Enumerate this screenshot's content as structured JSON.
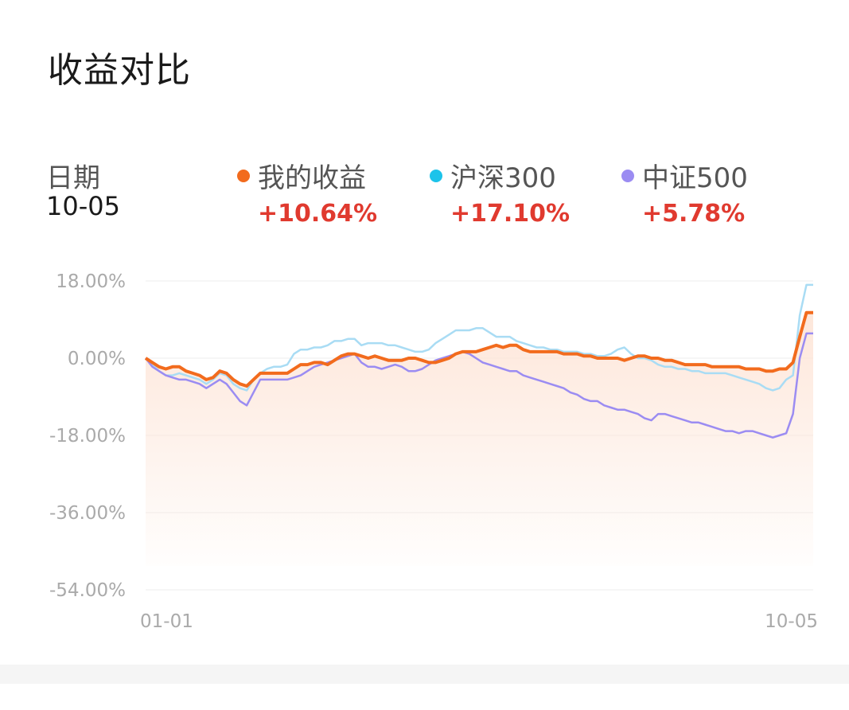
{
  "title": "收益对比",
  "date_label": "日期",
  "date_value": "10-05",
  "legend": [
    {
      "name": "我的收益",
      "value": "+10.64%",
      "color": "#f26b1d"
    },
    {
      "name": "沪深300",
      "value": "+17.10%",
      "color": "#1cc3ea"
    },
    {
      "name": "中证500",
      "value": "+5.78%",
      "color": "#9b8cf2"
    }
  ],
  "chart_data": {
    "type": "line",
    "x_tick_labels": [
      "01-01",
      "10-05"
    ],
    "y_tick_labels": [
      "18.00%",
      "0.00%",
      "-18.00%",
      "-36.00%",
      "-54.00%"
    ],
    "ylim": [
      -54,
      18
    ],
    "grid": true,
    "series": [
      {
        "name": "我的收益",
        "color": "#f26b1d",
        "values": [
          0,
          -1,
          -2,
          -2.5,
          -2,
          -2,
          -3,
          -3.5,
          -4,
          -5,
          -4.5,
          -3,
          -3.5,
          -5,
          -6,
          -6.5,
          -5,
          -3.5,
          -3.5,
          -3.5,
          -3.5,
          -3.5,
          -2.5,
          -1.5,
          -1.5,
          -1,
          -1,
          -1.5,
          -0.5,
          0.5,
          1,
          1,
          0.5,
          0,
          0.5,
          0,
          -0.5,
          -0.5,
          -0.5,
          0,
          0,
          -0.5,
          -1,
          -1,
          -0.5,
          0,
          1,
          1.5,
          1.5,
          1.5,
          2,
          2.5,
          3,
          2.5,
          3,
          3,
          2,
          1.5,
          1.5,
          1.5,
          1.5,
          1.5,
          1,
          1,
          1,
          0.5,
          0.5,
          0,
          0,
          0,
          0,
          -0.5,
          0,
          0.5,
          0.5,
          0,
          0,
          -0.5,
          -0.5,
          -1,
          -1.5,
          -1.5,
          -1.5,
          -1.5,
          -2,
          -2,
          -2,
          -2,
          -2,
          -2.5,
          -2.5,
          -2.5,
          -3,
          -3,
          -2.5,
          -2.5,
          -1,
          5,
          10.64,
          10.64
        ]
      },
      {
        "name": "沪深300",
        "color": "#a9dcf4",
        "values": [
          0,
          -1.5,
          -3,
          -4,
          -4,
          -3.5,
          -4,
          -4.5,
          -5,
          -6,
          -5,
          -3.5,
          -4,
          -6,
          -7,
          -7.5,
          -5,
          -3.5,
          -2.5,
          -2,
          -2,
          -1.5,
          1,
          2,
          2,
          2.5,
          2.5,
          3,
          4,
          4,
          4.5,
          4.5,
          3,
          3.5,
          3.5,
          3.5,
          3,
          3,
          2.5,
          2,
          1.5,
          1.5,
          2,
          3.5,
          4.5,
          5.5,
          6.5,
          6.5,
          6.5,
          7,
          7,
          6,
          5,
          5,
          5,
          4,
          3.5,
          3,
          2.5,
          2.5,
          2,
          2,
          1.5,
          1.5,
          1.5,
          1,
          1,
          0.5,
          0.5,
          1,
          2,
          2.5,
          1,
          0,
          0,
          -0.5,
          -1.5,
          -2,
          -2,
          -2.5,
          -2.5,
          -3,
          -3,
          -3.5,
          -3.5,
          -3.5,
          -3.5,
          -4,
          -4.5,
          -5,
          -5.5,
          -6,
          -7,
          -7.5,
          -7,
          -5,
          -4,
          10,
          17.1,
          17.1
        ]
      },
      {
        "name": "中证500",
        "color": "#9b8cf2",
        "values": [
          0,
          -2,
          -3,
          -4,
          -4.5,
          -5,
          -5,
          -5.5,
          -6,
          -7,
          -6,
          -5,
          -6,
          -8,
          -10,
          -11,
          -8,
          -5,
          -5,
          -5,
          -5,
          -5,
          -4.5,
          -4,
          -3,
          -2,
          -1.5,
          -1,
          -0.5,
          0,
          0.5,
          1,
          -1,
          -2,
          -2,
          -2.5,
          -2,
          -1.5,
          -2,
          -3,
          -3,
          -2.5,
          -1.5,
          -0.5,
          0,
          0.5,
          1,
          1.5,
          1,
          0,
          -1,
          -1.5,
          -2,
          -2.5,
          -3,
          -3,
          -4,
          -4.5,
          -5,
          -5.5,
          -6,
          -6.5,
          -7,
          -8,
          -8.5,
          -9.5,
          -10,
          -10,
          -11,
          -11.5,
          -12,
          -12,
          -12.5,
          -13,
          -14,
          -14.5,
          -13,
          -13,
          -13.5,
          -14,
          -14.5,
          -15,
          -15,
          -15.5,
          -16,
          -16.5,
          -17,
          -17,
          -17.5,
          -17,
          -17,
          -17.5,
          -18,
          -18.5,
          -18,
          -17.5,
          -13,
          0,
          5.78,
          5.78
        ]
      }
    ]
  }
}
